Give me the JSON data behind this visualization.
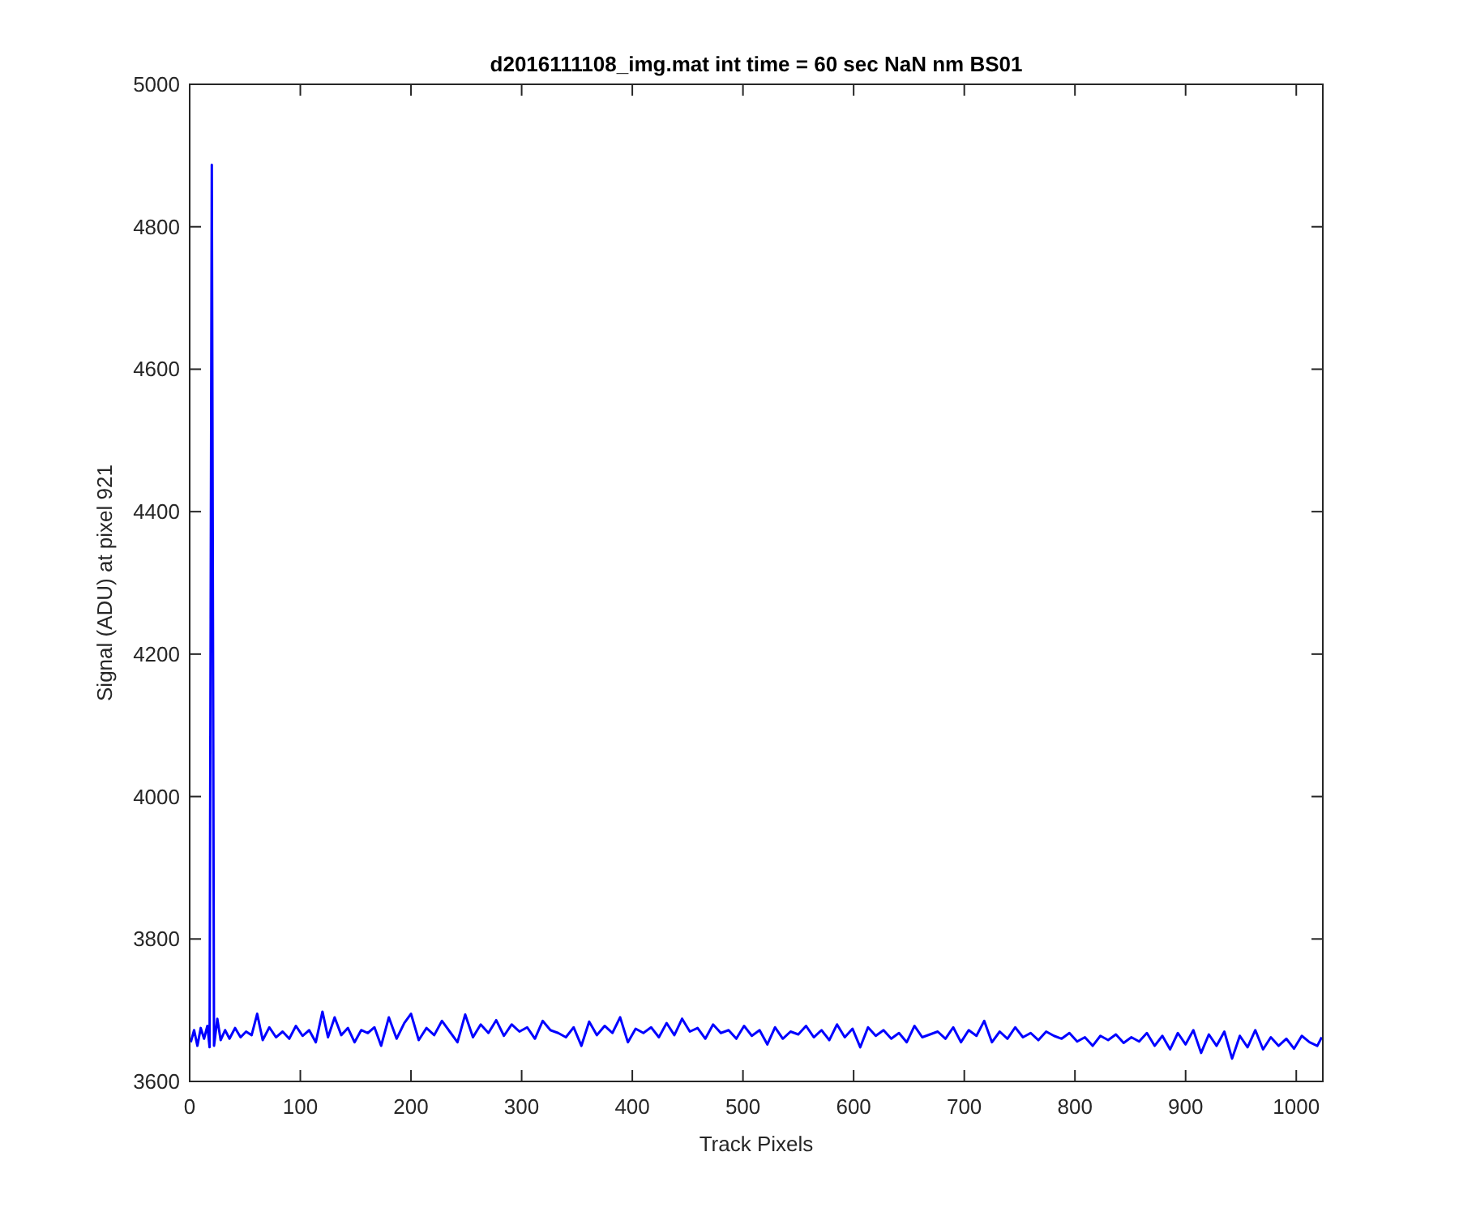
{
  "chart_data": {
    "type": "line",
    "title": "d2016111108_img.mat int time = 60 sec  NaN nm BS01",
    "xlabel": "Track Pixels",
    "ylabel": "Signal (ADU) at pixel 921",
    "xlim": [
      0,
      1024
    ],
    "ylim": [
      3600,
      5000
    ],
    "xticks": [
      0,
      100,
      200,
      300,
      400,
      500,
      600,
      700,
      800,
      900,
      1000
    ],
    "yticks": [
      3600,
      3800,
      4000,
      4200,
      4400,
      4600,
      4800,
      5000
    ],
    "grid": false,
    "x": [
      1,
      4,
      7,
      10,
      13,
      16,
      18,
      20,
      22,
      25,
      28,
      32,
      36,
      41,
      46,
      51,
      56,
      61,
      66,
      72,
      78,
      84,
      90,
      96,
      102,
      108,
      114,
      120,
      125,
      131,
      137,
      143,
      149,
      155,
      161,
      167,
      173,
      180,
      187,
      194,
      200,
      207,
      214,
      221,
      228,
      235,
      242,
      249,
      256,
      263,
      270,
      277,
      284,
      291,
      298,
      305,
      312,
      319,
      326,
      333,
      340,
      347,
      354,
      361,
      368,
      375,
      382,
      389,
      396,
      403,
      410,
      417,
      424,
      431,
      438,
      445,
      452,
      459,
      466,
      473,
      480,
      487,
      494,
      501,
      508,
      515,
      522,
      529,
      536,
      543,
      550,
      557,
      564,
      571,
      578,
      585,
      592,
      599,
      606,
      613,
      620,
      627,
      634,
      641,
      648,
      655,
      662,
      669,
      676,
      683,
      690,
      697,
      704,
      711,
      718,
      725,
      732,
      739,
      746,
      753,
      760,
      767,
      774,
      781,
      788,
      795,
      802,
      809,
      816,
      823,
      830,
      837,
      844,
      851,
      858,
      865,
      872,
      879,
      886,
      893,
      900,
      907,
      914,
      921,
      928,
      935,
      942,
      949,
      956,
      963,
      970,
      977,
      984,
      991,
      998,
      1005,
      1012,
      1019,
      1023
    ],
    "series": [
      {
        "color": "#0000ff",
        "values": [
          3655,
          3672,
          3650,
          3675,
          3660,
          3678,
          3648,
          4887,
          3650,
          3688,
          3658,
          3672,
          3660,
          3675,
          3662,
          3670,
          3665,
          3695,
          3658,
          3676,
          3662,
          3670,
          3660,
          3678,
          3664,
          3672,
          3655,
          3698,
          3662,
          3690,
          3665,
          3675,
          3655,
          3672,
          3668,
          3676,
          3650,
          3690,
          3660,
          3682,
          3695,
          3658,
          3675,
          3665,
          3685,
          3670,
          3655,
          3694,
          3662,
          3680,
          3668,
          3686,
          3664,
          3680,
          3670,
          3676,
          3660,
          3685,
          3672,
          3668,
          3662,
          3676,
          3650,
          3684,
          3665,
          3678,
          3668,
          3690,
          3655,
          3674,
          3668,
          3676,
          3662,
          3682,
          3665,
          3688,
          3670,
          3675,
          3660,
          3680,
          3668,
          3672,
          3660,
          3678,
          3664,
          3672,
          3652,
          3676,
          3660,
          3670,
          3666,
          3678,
          3662,
          3672,
          3658,
          3680,
          3662,
          3674,
          3648,
          3676,
          3664,
          3672,
          3660,
          3668,
          3655,
          3678,
          3662,
          3666,
          3670,
          3660,
          3676,
          3655,
          3672,
          3664,
          3685,
          3655,
          3670,
          3660,
          3676,
          3662,
          3668,
          3658,
          3670,
          3664,
          3660,
          3668,
          3656,
          3662,
          3650,
          3664,
          3658,
          3666,
          3654,
          3662,
          3656,
          3668,
          3650,
          3664,
          3645,
          3668,
          3652,
          3672,
          3640,
          3666,
          3650,
          3670,
          3632,
          3664,
          3648,
          3672,
          3645,
          3662,
          3650,
          3660,
          3646,
          3664,
          3655,
          3650,
          3662
        ]
      }
    ]
  }
}
